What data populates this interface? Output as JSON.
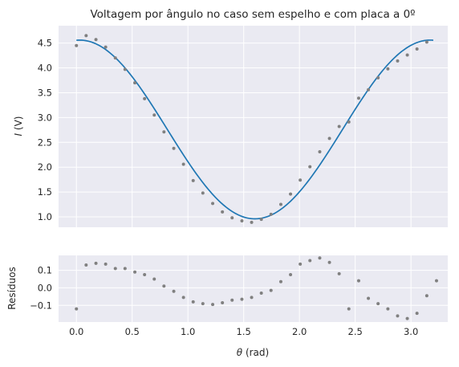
{
  "chart_data": [
    {
      "type": "scatter",
      "title": "Voltagem por ângulo no caso sem espelho e com placa a 0º",
      "ylabel_var": "I",
      "ylabel_unit": " (V)",
      "xlim": [
        -0.16,
        3.33
      ],
      "ylim": [
        0.79,
        4.85
      ],
      "yticks": [
        1.0,
        1.5,
        2.0,
        2.5,
        3.0,
        3.5,
        4.0,
        4.5
      ],
      "ytick_labels": [
        "1.0",
        "1.5",
        "2.0",
        "2.5",
        "3.0",
        "3.5",
        "4.0",
        "4.5"
      ],
      "xticks": [
        0.0,
        0.5,
        1.0,
        1.5,
        2.0,
        2.5,
        3.0
      ],
      "grid": true,
      "background": "#eaeaf2",
      "series": [
        {
          "kind": "points",
          "color": "#808080",
          "x": [
            0.0,
            0.087,
            0.175,
            0.262,
            0.349,
            0.436,
            0.524,
            0.611,
            0.698,
            0.785,
            0.873,
            0.96,
            1.047,
            1.134,
            1.222,
            1.309,
            1.396,
            1.484,
            1.571,
            1.658,
            1.745,
            1.833,
            1.92,
            2.007,
            2.094,
            2.182,
            2.269,
            2.356,
            2.443,
            2.531,
            2.618,
            2.705,
            2.793,
            2.88,
            2.967,
            3.054,
            3.142
          ],
          "y": [
            4.45,
            4.65,
            4.57,
            4.42,
            4.2,
            3.97,
            3.7,
            3.38,
            3.05,
            2.71,
            2.38,
            2.06,
            1.73,
            1.48,
            1.27,
            1.1,
            0.98,
            0.92,
            0.89,
            0.95,
            1.05,
            1.25,
            1.46,
            1.74,
            2.01,
            2.31,
            2.58,
            2.82,
            2.91,
            3.39,
            3.56,
            3.8,
            3.98,
            4.14,
            4.26,
            4.38,
            4.52
          ]
        },
        {
          "kind": "fit",
          "color": "#1f77b4",
          "model": "2.76 + 1.80*cos(2*(x - 0.03))"
        }
      ]
    },
    {
      "type": "scatter",
      "ylabel": "Resíduos",
      "xlabel_var": "θ",
      "xlabel_unit": " (rad)",
      "xlim": [
        -0.16,
        3.33
      ],
      "ylim": [
        -0.195,
        0.185
      ],
      "yticks": [
        -0.1,
        0.0,
        0.1
      ],
      "ytick_labels": [
        "−0.1",
        "0.0",
        "0.1"
      ],
      "xticks": [
        0.0,
        0.5,
        1.0,
        1.5,
        2.0,
        2.5,
        3.0
      ],
      "xtick_labels": [
        "0.0",
        "0.5",
        "1.0",
        "1.5",
        "2.0",
        "2.5",
        "3.0"
      ],
      "grid": true,
      "background": "#eaeaf2",
      "series": [
        {
          "kind": "points",
          "color": "#808080",
          "x": [
            0.0,
            0.087,
            0.175,
            0.262,
            0.349,
            0.436,
            0.524,
            0.611,
            0.698,
            0.785,
            0.873,
            0.96,
            1.047,
            1.134,
            1.222,
            1.309,
            1.396,
            1.484,
            1.571,
            1.658,
            1.745,
            1.833,
            1.92,
            2.007,
            2.094,
            2.182,
            2.269,
            2.356,
            2.443,
            2.531,
            2.618,
            2.705,
            2.793,
            2.88,
            2.967,
            3.054,
            3.142,
            3.229
          ],
          "y": [
            -0.12,
            0.13,
            0.14,
            0.135,
            0.11,
            0.11,
            0.09,
            0.075,
            0.05,
            0.01,
            -0.02,
            -0.055,
            -0.08,
            -0.09,
            -0.095,
            -0.085,
            -0.07,
            -0.065,
            -0.055,
            -0.03,
            -0.015,
            0.035,
            0.075,
            0.135,
            0.155,
            0.17,
            0.145,
            0.08,
            -0.12,
            0.04,
            -0.06,
            -0.09,
            -0.12,
            -0.16,
            -0.175,
            -0.145,
            -0.045,
            0.04
          ]
        }
      ]
    }
  ]
}
